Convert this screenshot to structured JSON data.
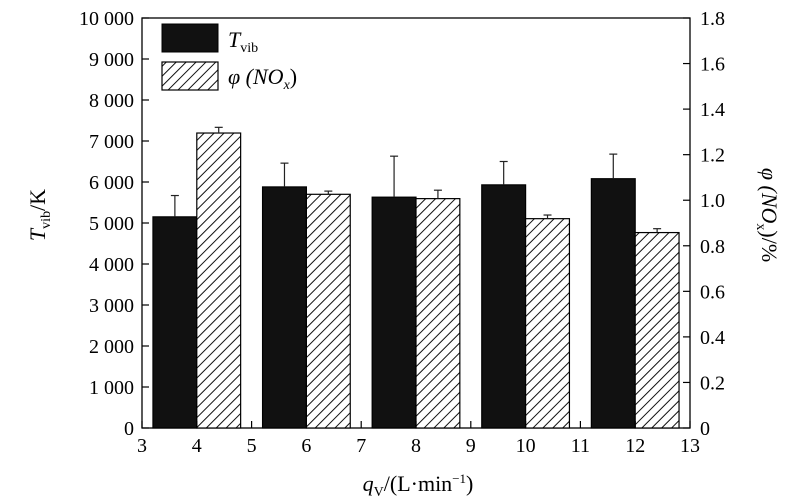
{
  "chart_data": {
    "type": "bar",
    "x_ticks": [
      "3",
      "4",
      "5",
      "6",
      "7",
      "8",
      "9",
      "10",
      "11",
      "12",
      "13"
    ],
    "categories": [
      "4",
      "6",
      "8",
      "10",
      "12"
    ],
    "xlim": [
      3,
      13
    ],
    "xlabel": {
      "main": "q",
      "sub": "V",
      "rest": "/(L·min",
      "sup": "−1",
      "end": ")"
    },
    "left_axis": {
      "label": {
        "main": "T",
        "sub": "vib",
        "rest": "/K"
      },
      "ylim": [
        0,
        10000
      ],
      "ticks": [
        "0",
        "1 000",
        "2 000",
        "3 000",
        "4 000",
        "5 000",
        "6 000",
        "7 000",
        "8 000",
        "9 000",
        "10 000"
      ]
    },
    "right_axis": {
      "label": {
        "main": "φ (NO",
        "sub": "x",
        "rest": ")/%"
      },
      "ylim": [
        0,
        1.8
      ],
      "ticks": [
        "0",
        "0.2",
        "0.4",
        "0.6",
        "0.8",
        "1.0",
        "1.2",
        "1.4",
        "1.6",
        "1.8"
      ]
    },
    "series": [
      {
        "name_parts": {
          "main": "T",
          "sub": "vib"
        },
        "axis": "left",
        "style": "solid",
        "color": "#111111",
        "values": [
          5150,
          5880,
          5630,
          5930,
          6080
        ],
        "errors": [
          520,
          580,
          1000,
          570,
          600
        ]
      },
      {
        "name_parts": {
          "main": "φ (NO",
          "sub": "x",
          "end": ")"
        },
        "axis": "right",
        "style": "hatched",
        "color": "#111111",
        "values": [
          1.295,
          1.026,
          1.007,
          0.919,
          0.858
        ],
        "errors": [
          0.025,
          0.014,
          0.037,
          0.016,
          0.017
        ]
      }
    ],
    "legend_position": "top-left",
    "grid": false
  }
}
